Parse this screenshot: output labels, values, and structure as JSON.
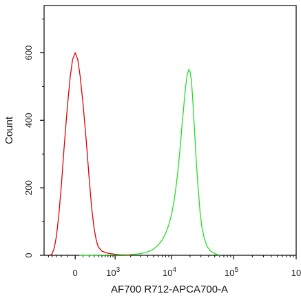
{
  "chart_data": {
    "type": "line",
    "title": "",
    "xlabel": "AF700 R712-APCA700-A",
    "ylabel": "Count",
    "x_scale": "biexponential",
    "x_tick_labels": [
      "0",
      "10",
      "3",
      "10",
      "4",
      "10",
      "5",
      "10"
    ],
    "x_ticks": [
      {
        "base": "0",
        "exp": "",
        "value": 0
      },
      {
        "base": "10",
        "exp": "3",
        "value": 1000
      },
      {
        "base": "10",
        "exp": "4",
        "value": 10000
      },
      {
        "base": "10",
        "exp": "5",
        "value": 100000
      },
      {
        "base": "10",
        "exp": "",
        "value": 1000000
      }
    ],
    "y_ticks": [
      {
        "label": "0",
        "value": 0
      },
      {
        "label": "200",
        "value": 200
      },
      {
        "label": "400",
        "value": 400
      },
      {
        "label": "600",
        "value": 600
      }
    ],
    "ylim": [
      0,
      740
    ],
    "grid": false,
    "series": [
      {
        "color": "#dd0000",
        "points": [
          [
            -450,
            0
          ],
          [
            -400,
            5
          ],
          [
            -350,
            20
          ],
          [
            -300,
            55
          ],
          [
            -250,
            115
          ],
          [
            -200,
            205
          ],
          [
            -150,
            320
          ],
          [
            -100,
            440
          ],
          [
            -60,
            530
          ],
          [
            -30,
            580
          ],
          [
            0,
            600
          ],
          [
            30,
            580
          ],
          [
            60,
            530
          ],
          [
            100,
            450
          ],
          [
            150,
            340
          ],
          [
            200,
            230
          ],
          [
            250,
            140
          ],
          [
            300,
            80
          ],
          [
            350,
            45
          ],
          [
            400,
            25
          ],
          [
            500,
            12
          ],
          [
            700,
            6
          ],
          [
            1000,
            3
          ],
          [
            1500,
            1
          ],
          [
            2000,
            0
          ]
        ]
      },
      {
        "color": "#22dd22",
        "points": [
          [
            50,
            0
          ],
          [
            1000,
            1
          ],
          [
            2000,
            2
          ],
          [
            3000,
            5
          ],
          [
            4000,
            10
          ],
          [
            5000,
            18
          ],
          [
            6000,
            30
          ],
          [
            7000,
            45
          ],
          [
            8000,
            65
          ],
          [
            9000,
            90
          ],
          [
            10000,
            120
          ],
          [
            11000,
            160
          ],
          [
            12000,
            210
          ],
          [
            13000,
            265
          ],
          [
            14000,
            330
          ],
          [
            15000,
            395
          ],
          [
            16000,
            450
          ],
          [
            17000,
            500
          ],
          [
            18000,
            535
          ],
          [
            19000,
            550
          ],
          [
            20000,
            545
          ],
          [
            21000,
            520
          ],
          [
            22000,
            470
          ],
          [
            23000,
            410
          ],
          [
            24000,
            350
          ],
          [
            25000,
            290
          ],
          [
            27000,
            200
          ],
          [
            29000,
            130
          ],
          [
            31000,
            85
          ],
          [
            34000,
            50
          ],
          [
            38000,
            25
          ],
          [
            43000,
            12
          ],
          [
            50000,
            5
          ],
          [
            60000,
            0
          ]
        ]
      }
    ]
  }
}
